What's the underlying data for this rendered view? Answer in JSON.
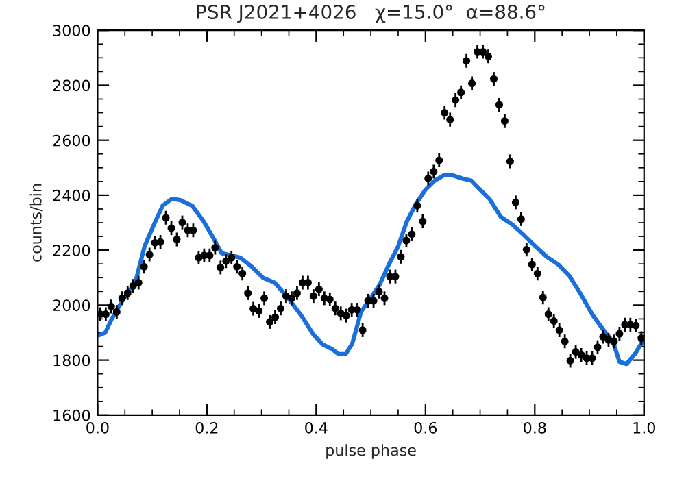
{
  "chart_data": {
    "type": "scatter",
    "title": "PSR J2021+4026   χ=15.0°  α=88.6°",
    "xlabel": "pulse phase",
    "ylabel": "counts/bin",
    "xlim": [
      0.0,
      1.0
    ],
    "xticks": [
      {
        "value": 0.0,
        "label": "0.0"
      },
      {
        "value": 0.2,
        "label": "0.2"
      },
      {
        "value": 0.4,
        "label": "0.4"
      },
      {
        "value": 0.6,
        "label": "0.6"
      },
      {
        "value": 0.8,
        "label": "0.8"
      },
      {
        "value": 1.0,
        "label": "1.0"
      }
    ],
    "ylim": [
      1600,
      3000
    ],
    "yticks": [
      1600,
      1800,
      2000,
      2200,
      2400,
      2600,
      2800,
      3000
    ],
    "grid": false,
    "legend": false,
    "series": [
      {
        "marker": "circle",
        "color": "#000000",
        "x": [
          0.005,
          0.015,
          0.025,
          0.035,
          0.045,
          0.055,
          0.065,
          0.075,
          0.085,
          0.095,
          0.105,
          0.115,
          0.125,
          0.135,
          0.145,
          0.155,
          0.165,
          0.175,
          0.185,
          0.195,
          0.205,
          0.215,
          0.225,
          0.235,
          0.245,
          0.255,
          0.265,
          0.275,
          0.285,
          0.295,
          0.305,
          0.315,
          0.325,
          0.335,
          0.345,
          0.355,
          0.365,
          0.375,
          0.385,
          0.395,
          0.405,
          0.415,
          0.425,
          0.435,
          0.445,
          0.455,
          0.465,
          0.475,
          0.485,
          0.495,
          0.505,
          0.515,
          0.525,
          0.535,
          0.545,
          0.555,
          0.565,
          0.575,
          0.585,
          0.595,
          0.605,
          0.615,
          0.625,
          0.635,
          0.645,
          0.655,
          0.665,
          0.675,
          0.685,
          0.695,
          0.705,
          0.715,
          0.725,
          0.735,
          0.745,
          0.755,
          0.765,
          0.775,
          0.785,
          0.795,
          0.805,
          0.815,
          0.825,
          0.835,
          0.845,
          0.855,
          0.865,
          0.875,
          0.885,
          0.895,
          0.905,
          0.915,
          0.925,
          0.935,
          0.945,
          0.955,
          0.965,
          0.975,
          0.985,
          0.995
        ],
        "values": [
          1967,
          1967,
          1995,
          1975,
          2025,
          2044,
          2070,
          2082,
          2140,
          2184,
          2227,
          2230,
          2318,
          2280,
          2239,
          2301,
          2272,
          2272,
          2173,
          2181,
          2181,
          2209,
          2137,
          2160,
          2173,
          2140,
          2115,
          2044,
          1987,
          1979,
          2025,
          1939,
          1956,
          1988,
          2033,
          2025,
          2044,
          2082,
          2082,
          2033,
          2058,
          2025,
          2021,
          1988,
          1970,
          1962,
          1983,
          1983,
          1909,
          2016,
          2016,
          2049,
          2025,
          2104,
          2104,
          2176,
          2235,
          2258,
          2362,
          2305,
          2461,
          2486,
          2527,
          2700,
          2675,
          2746,
          2774,
          2889,
          2807,
          2922,
          2922,
          2905,
          2823,
          2729,
          2670,
          2523,
          2374,
          2313,
          2202,
          2148,
          2115,
          2028,
          1967,
          1942,
          1909,
          1868,
          1798,
          1830,
          1819,
          1807,
          1807,
          1847,
          1885,
          1873,
          1868,
          1896,
          1929,
          1929,
          1926,
          1880
        ],
        "errors": [
          25,
          25,
          25,
          25,
          25,
          25,
          25,
          25,
          25,
          25,
          25,
          25,
          25,
          25,
          25,
          25,
          25,
          25,
          25,
          25,
          25,
          25,
          25,
          25,
          25,
          25,
          25,
          25,
          25,
          25,
          25,
          25,
          25,
          25,
          25,
          25,
          25,
          25,
          25,
          25,
          25,
          25,
          25,
          25,
          25,
          25,
          25,
          25,
          25,
          25,
          25,
          25,
          25,
          25,
          25,
          25,
          25,
          25,
          25,
          25,
          25,
          25,
          25,
          25,
          25,
          25,
          25,
          25,
          25,
          25,
          25,
          25,
          25,
          25,
          25,
          25,
          25,
          25,
          25,
          25,
          25,
          25,
          25,
          25,
          25,
          25,
          25,
          25,
          25,
          25,
          25,
          25,
          25,
          25,
          25,
          25,
          25,
          25,
          25,
          25
        ]
      },
      {
        "type": "line",
        "marker": "none",
        "line_style": "solid",
        "color": "#1a6fdb",
        "x": [
          0.002,
          0.014,
          0.026,
          0.048,
          0.069,
          0.086,
          0.102,
          0.119,
          0.136,
          0.152,
          0.173,
          0.194,
          0.211,
          0.227,
          0.244,
          0.261,
          0.282,
          0.303,
          0.324,
          0.349,
          0.374,
          0.395,
          0.412,
          0.429,
          0.441,
          0.454,
          0.466,
          0.482,
          0.499,
          0.516,
          0.533,
          0.55,
          0.566,
          0.583,
          0.6,
          0.617,
          0.633,
          0.65,
          0.667,
          0.684,
          0.7,
          0.717,
          0.738,
          0.759,
          0.78,
          0.801,
          0.822,
          0.843,
          0.863,
          0.884,
          0.905,
          0.926,
          0.943,
          0.955,
          0.968,
          0.985,
          0.997
        ],
        "values": [
          1890,
          1900,
          1950,
          2025,
          2082,
          2214,
          2288,
          2362,
          2387,
          2382,
          2362,
          2305,
          2247,
          2189,
          2181,
          2173,
          2140,
          2099,
          2082,
          2025,
          1959,
          1893,
          1857,
          1840,
          1822,
          1822,
          1860,
          1975,
          2025,
          2074,
          2148,
          2214,
          2305,
          2370,
          2420,
          2453,
          2472,
          2472,
          2461,
          2453,
          2420,
          2387,
          2321,
          2293,
          2255,
          2214,
          2176,
          2148,
          2107,
          2041,
          1967,
          1909,
          1868,
          1794,
          1786,
          1827,
          1868
        ]
      }
    ]
  }
}
